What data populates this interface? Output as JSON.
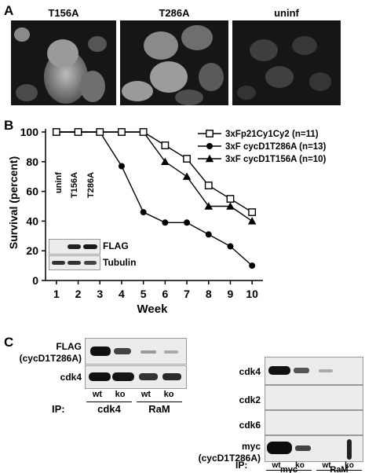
{
  "panel_a": {
    "letter": "A",
    "images": [
      {
        "title": "T156A"
      },
      {
        "title": "T286A"
      },
      {
        "title": "uninf"
      }
    ]
  },
  "panel_b": {
    "letter": "B",
    "inset": {
      "lanes": [
        "uninf",
        "T156A",
        "T286A"
      ],
      "bands": [
        "FLAG",
        "Tubulin"
      ]
    }
  },
  "chart_data": {
    "type": "line",
    "title": "",
    "xlabel": "Week",
    "ylabel": "Survival (percent)",
    "xlim": [
      0.5,
      10.5
    ],
    "ylim": [
      0,
      100
    ],
    "xticks": [
      1,
      2,
      3,
      4,
      5,
      6,
      7,
      8,
      9,
      10
    ],
    "yticks": [
      0,
      20,
      40,
      60,
      80,
      100
    ],
    "legend_position": "top-right",
    "grid": false,
    "series": [
      {
        "name": "3xFp21Cy1Cy2 (n=11)",
        "marker": "open-square",
        "x": [
          1,
          2,
          3,
          4,
          5,
          6,
          7,
          8,
          9,
          10
        ],
        "y": [
          100,
          100,
          100,
          100,
          100,
          91,
          82,
          64,
          55,
          46
        ]
      },
      {
        "name": "3xF cycD1T286A (n=13)",
        "marker": "filled-circle",
        "x": [
          1,
          2,
          3,
          4,
          5,
          6,
          7,
          8,
          9,
          10
        ],
        "y": [
          100,
          100,
          100,
          77,
          46,
          39,
          39,
          31,
          23,
          10
        ]
      },
      {
        "name": "3xF cycD1T156A (n=10)",
        "marker": "filled-triangle",
        "x": [
          1,
          2,
          3,
          4,
          5,
          6,
          7,
          8,
          9,
          10
        ],
        "y": [
          100,
          100,
          100,
          100,
          100,
          80,
          70,
          50,
          50,
          40
        ]
      }
    ]
  },
  "panel_c": {
    "letter": "C",
    "left": {
      "band_labels": [
        "FLAG",
        "(cycD1T286A)",
        "cdk4"
      ],
      "ip_label": "IP:",
      "lanes": [
        "wt",
        "ko",
        "wt",
        "ko"
      ],
      "groups": [
        "cdk4",
        "RaM"
      ]
    },
    "right": {
      "band_labels": [
        "cdk4",
        "cdk2",
        "cdk6",
        "myc",
        "(cycD1T286A)"
      ],
      "ip_label": "IP:",
      "lanes": [
        "wt",
        "ko",
        "wt",
        "ko"
      ],
      "groups": [
        "myc",
        "RaM"
      ]
    }
  }
}
